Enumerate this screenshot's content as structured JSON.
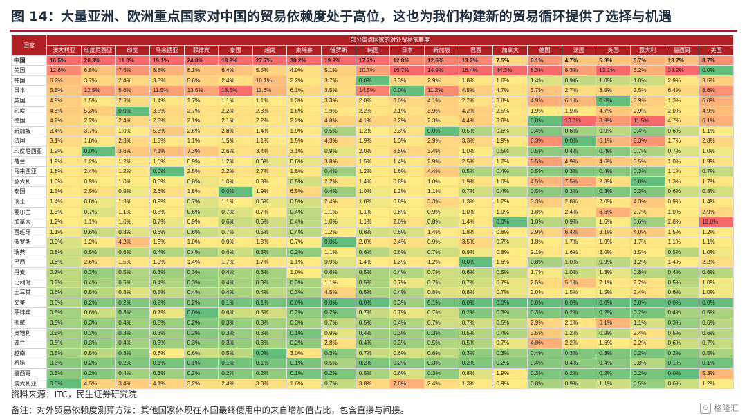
{
  "title": "图 14：大量亚洲、欧洲重点国家对中国的贸易依赖度处于高位，这也为我们构建新的贸易循环提供了选择与机遇",
  "table": {
    "corner_label": "国家",
    "super_header": "部分重点国家的对外贸易依赖度",
    "columns": [
      "澳大利亚",
      "印度尼西亚",
      "印度",
      "马来西亚",
      "菲律宾",
      "泰国",
      "越南",
      "柬埔寨",
      "俄罗斯",
      "韩国",
      "日本",
      "新加坡",
      "巴西",
      "加拿大",
      "德国",
      "法国",
      "英国",
      "意大利",
      "墨西哥",
      "美国"
    ],
    "rows": [
      {
        "name": "中国",
        "values": [
          "16.5%",
          "20.3%",
          "11.0%",
          "19.1%",
          "24.8%",
          "18.9%",
          "27.7%",
          "38.2%",
          "19.9%",
          "17.7%",
          "12.8%",
          "12.6%",
          "13.2%",
          "7.5%",
          "6.1%",
          "4.7%",
          "5.3%",
          "5.7%",
          "13.7%",
          "8.7%"
        ]
      },
      {
        "name": "美国",
        "values": [
          "12.6%",
          "6.8%",
          "7.6%",
          "8.8%",
          "8.1%",
          "6.4%",
          "5.5%",
          "4.0%",
          "5.1%",
          "10.7%",
          "16.7%",
          "14.9%",
          "16.4%",
          "44.3%",
          "8.3%",
          "8.3%",
          "13.1%",
          "6.2%",
          "38.2%",
          "0.0%"
        ]
      },
      {
        "name": "韩国",
        "values": [
          "6.2%",
          "3.7%",
          "2.4%",
          "3.5%",
          "5.6%",
          "2.4%",
          "10.1%",
          "2.2%",
          "3.7%",
          "0.0%",
          "3.3%",
          "2.9%",
          "1.8%",
          "1.6%",
          "1.4%",
          "0.9%",
          "1.0%",
          "1.0%",
          "2.9%",
          "3.5%"
        ]
      },
      {
        "name": "日本",
        "values": [
          "5.5%",
          "12.5%",
          "5.6%",
          "11.5%",
          "13.5%",
          "18.3%",
          "11.6%",
          "6.1%",
          "3.5%",
          "14.5%",
          "0.0%",
          "11.2%",
          "4.5%",
          "4.7%",
          "3.7%",
          "2.7%",
          "3.5%",
          "2.5%",
          "6.4%",
          "8.6%"
        ]
      },
      {
        "name": "英国",
        "values": [
          "4.9%",
          "1.5%",
          "2.3%",
          "1.4%",
          "1.7%",
          "1.1%",
          "1.1%",
          "1.3%",
          "3.3%",
          "2.0%",
          "3.0%",
          "4.1%",
          "2.2%",
          "3.8%",
          "4.9%",
          "6.1%",
          "0.0%",
          "3.9%",
          "1.3%",
          "6.0%"
        ]
      },
      {
        "name": "印度",
        "values": [
          "4.8%",
          "5.3%",
          "0.0%",
          "3.5%",
          "2.7%",
          "2.2%",
          "2.8%",
          "1.8%",
          "1.9%",
          "2.2%",
          "2.1%",
          "3.9%",
          "4.2%",
          "2.5%",
          "1.9%",
          "1.9%",
          "4.7%",
          "2.9%",
          "2.0%",
          "4.9%"
        ]
      },
      {
        "name": "德国",
        "values": [
          "4.2%",
          "2.2%",
          "2.4%",
          "2.8%",
          "2.1%",
          "2.1%",
          "2.2%",
          "2.2%",
          "4.8%",
          "4.1%",
          "3.2%",
          "2.3%",
          "4.4%",
          "3.8%",
          "0.0%",
          "13.3%",
          "8.9%",
          "11.5%",
          "4.7%",
          "6.1%"
        ]
      },
      {
        "name": "新加坡",
        "values": [
          "3.4%",
          "3.7%",
          "1.0%",
          "5.3%",
          "2.6%",
          "2.8%",
          "1.4%",
          "1.9%",
          "0.5%",
          "1.2%",
          "2.3%",
          "0.0%",
          "0.5%",
          "0.6%",
          "0.4%",
          "0.6%",
          "0.9%",
          "0.4%",
          "0.6%",
          "1.1%"
        ]
      },
      {
        "name": "法国",
        "values": [
          "3.1%",
          "1.8%",
          "2.3%",
          "1.3%",
          "1.1%",
          "1.5%",
          "1.1%",
          "1.5%",
          "4.3%",
          "1.9%",
          "1.3%",
          "2.9%",
          "3.3%",
          "1.9%",
          "6.3%",
          "0.0%",
          "6.1%",
          "8.3%",
          "1.7%",
          "2.8%"
        ]
      },
      {
        "name": "印度尼西亚",
        "values": [
          "1.9%",
          "0.0%",
          "3.6%",
          "7.1%",
          "7.3%",
          "2.6%",
          "3.4%",
          "3.1%",
          "0.9%",
          "2.0%",
          "3.5%",
          "3.4%",
          "1.0%",
          "0.5%",
          "0.5%",
          "0.4%",
          "0.4%",
          "0.7%",
          "0.7%",
          "1.0%"
        ]
      },
      {
        "name": "荷兰",
        "values": [
          "1.9%",
          "1.2%",
          "1.2%",
          "1.0%",
          "0.9%",
          "1.2%",
          "0.6%",
          "0.6%",
          "3.8%",
          "1.5%",
          "1.4%",
          "2.9%",
          "2.5%",
          "1.2%",
          "5.5%",
          "4.9%",
          "4.6%",
          "3.5%",
          "1.0%",
          "1.9%"
        ]
      },
      {
        "name": "马来西亚",
        "values": [
          "1.8%",
          "2.4%",
          "1.2%",
          "0.0%",
          "2.5%",
          "2.2%",
          "2.7%",
          "1.8%",
          "0.4%",
          "1.2%",
          "1.6%",
          "4.4%",
          "0.5%",
          "0.4%",
          "0.5%",
          "0.3%",
          "0.4%",
          "0.3%",
          "1.1%",
          "0.7%"
        ]
      },
      {
        "name": "意大利",
        "values": [
          "1.6%",
          "0.9%",
          "1.0%",
          "0.8%",
          "0.8%",
          "1.0%",
          "0.8%",
          "0.5%",
          "2.2%",
          "1.4%",
          "0.8%",
          "1.0%",
          "1.9%",
          "1.0%",
          "4.5%",
          "7.5%",
          "2.8%",
          "0.0%",
          "1.3%",
          "1.7%"
        ]
      },
      {
        "name": "泰国",
        "values": [
          "1.5%",
          "2.5%",
          "0.9%",
          "2.6%",
          "1.8%",
          "0.0%",
          "1.9%",
          "6.5%",
          "0.4%",
          "1.0%",
          "1.2%",
          "1.1%",
          "0.7%",
          "0.4%",
          "0.5%",
          "0.3%",
          "0.3%",
          "0.3%",
          "0.6%",
          "0.8%"
        ]
      },
      {
        "name": "瑞士",
        "values": [
          "1.4%",
          "0.8%",
          "1.3%",
          "0.9%",
          "0.7%",
          "1.1%",
          "0.6%",
          "0.5%",
          "2.4%",
          "1.0%",
          "0.8%",
          "3.3%",
          "1.3%",
          "1.2%",
          "3.3%",
          "2.8%",
          "2.0%",
          "4.3%",
          "0.9%",
          "1.4%"
        ]
      },
      {
        "name": "爱尔兰",
        "values": [
          "1.3%",
          "0.7%",
          "1.1%",
          "0.8%",
          "0.6%",
          "0.7%",
          "0.7%",
          "0.4%",
          "1.1%",
          "1.1%",
          "0.8%",
          "0.9%",
          "1.0%",
          "1.0%",
          "1.8%",
          "2.4%",
          "6.6%",
          "2.7%",
          "1.0%",
          "2.9%"
        ]
      },
      {
        "name": "加拿大",
        "values": [
          "1.2%",
          "1.1%",
          "1.0%",
          "0.7%",
          "0.9%",
          "0.6%",
          "0.5%",
          "0.4%",
          "1.0%",
          "1.1%",
          "2.0%",
          "0.8%",
          "1.4%",
          "0.0%",
          "1.0%",
          "0.9%",
          "1.6%",
          "0.6%",
          "2.8%",
          "12.0%"
        ]
      },
      {
        "name": "西班牙",
        "values": [
          "1.1%",
          "0.6%",
          "0.8%",
          "0.6%",
          "0.6%",
          "0.7%",
          "0.5%",
          "0.4%",
          "1.2%",
          "0.8%",
          "0.6%",
          "1.4%",
          "1.8%",
          "0.8%",
          "2.9%",
          "6.4%",
          "3.1%",
          "4.0%",
          "1.5%",
          "1.2%"
        ]
      },
      {
        "name": "俄罗斯",
        "values": [
          "0.9%",
          "1.2%",
          "4.2%",
          "1.3%",
          "1.0%",
          "0.9%",
          "1.3%",
          "0.7%",
          "0.0%",
          "2.0%",
          "2.4%",
          "0.9%",
          "3.5%",
          "0.7%",
          "1.8%",
          "1.7%",
          "1.9%",
          "1.7%",
          "1.1%",
          "1.1%"
        ]
      },
      {
        "name": "瑞典",
        "values": [
          "0.8%",
          "0.5%",
          "0.6%",
          "0.4%",
          "0.4%",
          "0.6%",
          "0.3%",
          "0.2%",
          "1.1%",
          "0.6%",
          "0.6%",
          "0.7%",
          "0.9%",
          "0.8%",
          "2.1%",
          "1.6%",
          "2.0%",
          "1.5%",
          "0.5%",
          "1.0%"
        ]
      },
      {
        "name": "巴西",
        "values": [
          "0.8%",
          "2.6%",
          "1.5%",
          "1.9%",
          "1.4%",
          "1.7%",
          "1.7%",
          "1.1%",
          "0.9%",
          "1.4%",
          "1.3%",
          "1.2%",
          "0.0%",
          "1.6%",
          "0.8%",
          "1.0%",
          "0.9%",
          "1.2%",
          "1.4%",
          "2.2%"
        ]
      },
      {
        "name": "丹麦",
        "values": [
          "0.7%",
          "0.3%",
          "0.5%",
          "0.3%",
          "0.3%",
          "0.4%",
          "0.3%",
          "1.0%",
          "0.6%",
          "0.5%",
          "0.4%",
          "0.7%",
          "0.6%",
          "0.5%",
          "1.7%",
          "1.0%",
          "1.3%",
          "0.8%",
          "0.4%",
          "0.6%"
        ]
      },
      {
        "name": "比利时",
        "values": [
          "0.7%",
          "0.4%",
          "0.5%",
          "0.4%",
          "0.3%",
          "0.4%",
          "0.3%",
          "0.3%",
          "1.1%",
          "0.5%",
          "0.7%",
          "0.7%",
          "0.7%",
          "0.7%",
          "2.5%",
          "5.1%",
          "2.1%",
          "2.2%",
          "0.5%",
          "1.0%"
        ]
      },
      {
        "name": "土耳其",
        "values": [
          "0.6%",
          "0.5%",
          "0.8%",
          "0.5%",
          "0.4%",
          "0.4%",
          "0.4%",
          "0.3%",
          "4.5%",
          "0.5%",
          "0.4%",
          "0.8%",
          "0.8%",
          "0.7%",
          "2.0%",
          "1.5%",
          "1.5%",
          "2.4%",
          "0.6%",
          "1.0%"
        ]
      },
      {
        "name": "文莱",
        "values": [
          "0.6%",
          "0.2%",
          "0.2%",
          "0.2%",
          "0.2%",
          "0.1%",
          "0.1%",
          "0.0%",
          "0.0%",
          "0.0%",
          "0.3%",
          "0.1%",
          "0.0%",
          "0.0%",
          "0.0%",
          "0.0%",
          "0.0%",
          "0.0%",
          "0.0%",
          "0.0%"
        ]
      },
      {
        "name": "菲律宾",
        "values": [
          "0.5%",
          "0.6%",
          "0.3%",
          "0.7%",
          "0.0%",
          "0.6%",
          "0.5%",
          "0.2%",
          "0.2%",
          "0.7%",
          "0.7%",
          "0.7%",
          "0.2%",
          "0.3%",
          "0.3%",
          "0.2%",
          "0.2%",
          "0.2%",
          "0.4%",
          "0.5%"
        ]
      },
      {
        "name": "挪威",
        "values": [
          "0.5%",
          "0.3%",
          "0.4%",
          "0.3%",
          "0.2%",
          "0.3%",
          "0.3%",
          "0.3%",
          "0.7%",
          "0.5%",
          "0.4%",
          "0.7%",
          "0.7%",
          "0.5%",
          "2.9%",
          "2.1%",
          "6.1%",
          "1.1%",
          "0.3%",
          "0.6%"
        ]
      },
      {
        "name": "奥地利",
        "values": [
          "0.5%",
          "0.3%",
          "0.3%",
          "0.3%",
          "0.2%",
          "0.3%",
          "0.3%",
          "0.1%",
          "0.9%",
          "0.4%",
          "0.3%",
          "0.3%",
          "0.5%",
          "0.4%",
          "3.5%",
          "1.2%",
          "0.9%",
          "2.4%",
          "0.5%",
          "0.6%"
        ]
      },
      {
        "name": "波兰",
        "values": [
          "0.5%",
          "0.3%",
          "0.4%",
          "0.3%",
          "0.3%",
          "0.3%",
          "0.3%",
          "0.2%",
          "2.8%",
          "0.4%",
          "0.3%",
          "0.5%",
          "0.5%",
          "0.7%",
          "4.8%",
          "2.2%",
          "1.6%",
          "2.2%",
          "0.6%",
          "0.7%"
        ]
      },
      {
        "name": "越南",
        "values": [
          "0.5%",
          "0.5%",
          "0.3%",
          "0.8%",
          "0.6%",
          "0.5%",
          "0.0%",
          "3.0%",
          "0.3%",
          "0.7%",
          "0.6%",
          "0.6%",
          "0.3%",
          "0.3%",
          "0.4%",
          "0.3%",
          "0.3%",
          "0.2%",
          "0.2%",
          "0.5%"
        ]
      },
      {
        "name": "希腊",
        "values": [
          "0.3%",
          "0.2%",
          "0.2%",
          "0.1%",
          "0.1%",
          "0.1%",
          "0.1%",
          "0.1%",
          "0.5%",
          "0.2%",
          "0.2%",
          "0.3%",
          "0.2%",
          "0.2%",
          "0.4%",
          "0.4%",
          "0.4%",
          "0.8%",
          "0.1%",
          "0.1%"
        ]
      },
      {
        "name": "墨西哥",
        "values": [
          "0.3%",
          "0.2%",
          "0.4%",
          "0.3%",
          "0.2%",
          "0.2%",
          "0.2%",
          "0.1%",
          "0.2%",
          "0.5%",
          "0.6%",
          "0.3%",
          "0.8%",
          "1.9%",
          "0.3%",
          "0.2%",
          "0.2%",
          "0.2%",
          "0.0%",
          "5.3%"
        ]
      },
      {
        "name": "澳大利亚",
        "values": [
          "0.0%",
          "4.5%",
          "3.4%",
          "4.1%",
          "3.2%",
          "2.4%",
          "3.3%",
          "1.6%",
          "0.7%",
          "3.8%",
          "7.6%",
          "2.4%",
          "1.3%",
          "0.9%",
          "0.8%",
          "0.9%",
          "1.1%",
          "0.5%",
          "0.6%",
          "1.2%"
        ]
      }
    ]
  },
  "colors": {
    "header_bg": "#b01f24",
    "header_text": "#ffffff",
    "scale_low": "#63be7b",
    "scale_mid": "#ffeb84",
    "scale_high": "#f8696b",
    "title_rule": "#a6192e"
  },
  "footer": {
    "source": "资料来源：ITC，民生证券研究院",
    "note": "备注：对外贸易依赖度测算方法：其他国家体现在本国最终使用中的来自增加值占比，包含直接与间接。"
  },
  "logo": {
    "icon": "gelonghui-logo-icon",
    "text": "格隆汇"
  }
}
